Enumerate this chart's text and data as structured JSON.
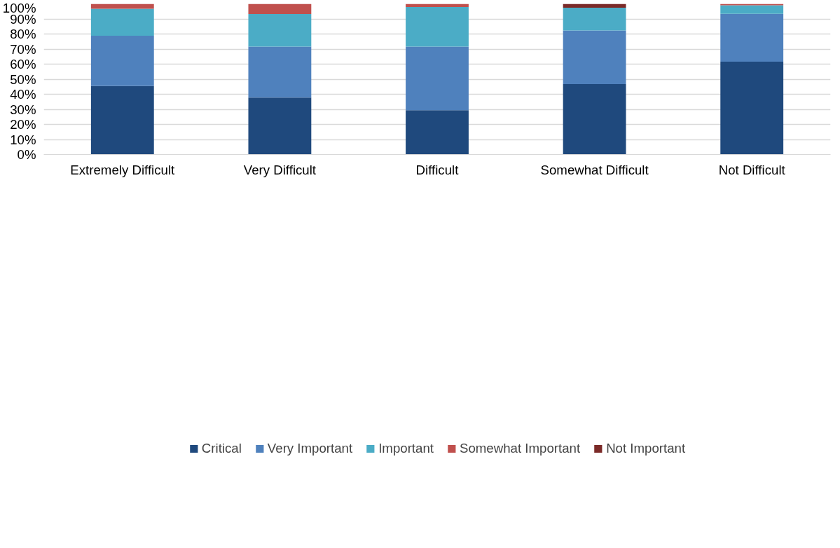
{
  "chart_data": {
    "type": "bar",
    "stacked": true,
    "categories": [
      "Extremely Difficult",
      "Very Difficult",
      "Difficult",
      "Somewhat Difficult",
      "Not Difficult"
    ],
    "series": [
      {
        "name": "Critical",
        "color": "#1f497d",
        "values": [
          45.5,
          37.8,
          29.4,
          46.7,
          61.6
        ]
      },
      {
        "name": "Very Important",
        "color": "#4f81bd",
        "values": [
          33.3,
          33.8,
          42.2,
          35.6,
          31.8
        ]
      },
      {
        "name": "Important",
        "color": "#4bacc6",
        "values": [
          18.0,
          21.6,
          26.3,
          15.1,
          5.7
        ]
      },
      {
        "name": "Somewhat Important",
        "color": "#c0504d",
        "values": [
          3.2,
          6.8,
          2.1,
          0,
          0.9
        ]
      },
      {
        "name": "Not Important",
        "color": "#7b2a28",
        "values": [
          0,
          0,
          0,
          2.6,
          0
        ]
      }
    ],
    "ylim": [
      0,
      100
    ],
    "yticks": [
      {
        "value": 0,
        "label": "0%"
      },
      {
        "value": 10,
        "label": "10%"
      },
      {
        "value": 20,
        "label": "20%"
      },
      {
        "value": 30,
        "label": "30%"
      },
      {
        "value": 40,
        "label": "40%"
      },
      {
        "value": 50,
        "label": "50%"
      },
      {
        "value": 60,
        "label": "60%"
      },
      {
        "value": 70,
        "label": "70%"
      },
      {
        "value": 80,
        "label": "80%"
      },
      {
        "value": 90,
        "label": "90%"
      },
      {
        "value": 100,
        "label": "100%"
      }
    ],
    "grid": "y",
    "legend": "bottom"
  }
}
